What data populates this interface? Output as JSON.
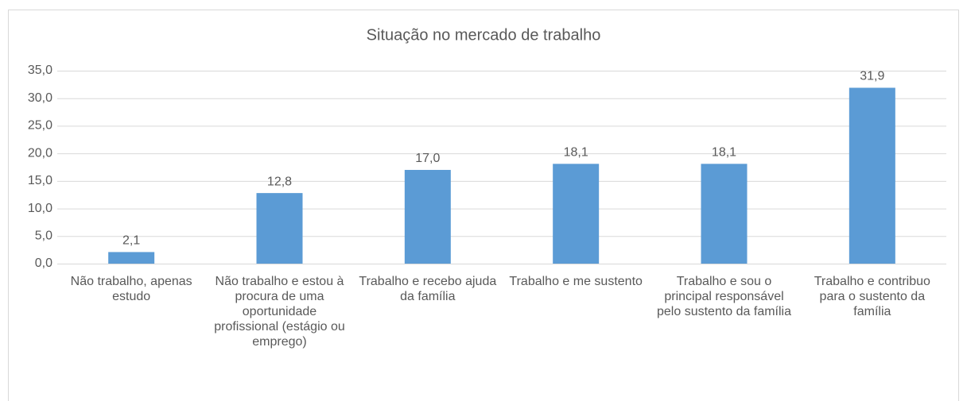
{
  "chart_data": {
    "type": "bar",
    "title": "Situação no mercado de trabalho",
    "categories": [
      "Não trabalho, apenas estudo",
      "Não trabalho e estou à procura de uma oportunidade profissional (estágio ou emprego)",
      "Trabalho e recebo ajuda da família",
      "Trabalho e me sustento",
      "Trabalho e sou o principal responsável pelo sustento da família",
      "Trabalho e contribuo para o sustento da família"
    ],
    "values": [
      2.1,
      12.8,
      17.0,
      18.1,
      18.1,
      31.9
    ],
    "value_labels": [
      "2,1",
      "12,8",
      "17,0",
      "18,1",
      "18,1",
      "31,9"
    ],
    "color": "#5b9bd5",
    "ylim": [
      0,
      35
    ],
    "yticks": [
      {
        "value": 0,
        "label": "0,0"
      },
      {
        "value": 5,
        "label": "5,0"
      },
      {
        "value": 10,
        "label": "10,0"
      },
      {
        "value": 15,
        "label": "15,0"
      },
      {
        "value": 20,
        "label": "20,0"
      },
      {
        "value": 25,
        "label": "25,0"
      },
      {
        "value": 30,
        "label": "30,0"
      },
      {
        "value": 35,
        "label": "35,0"
      }
    ],
    "grid": true
  }
}
